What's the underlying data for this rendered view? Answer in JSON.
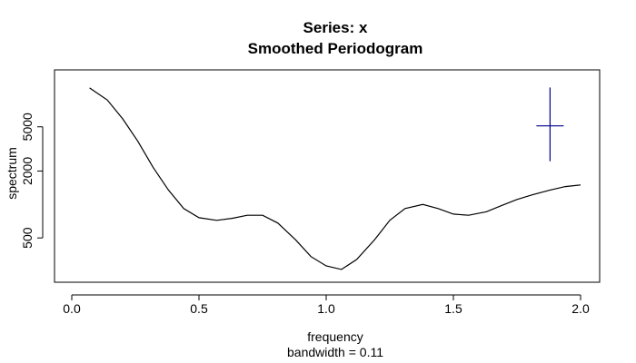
{
  "chart_data": {
    "type": "line",
    "title": "Series: x",
    "subtitle": "Smoothed Periodogram",
    "xlabel": "frequency",
    "xlabel_sub": "bandwidth = 0.11",
    "ylabel": "spectrum",
    "y_scale": "log",
    "xlim": [
      0,
      2
    ],
    "ylim": [
      280,
      14000
    ],
    "x_ticks": [
      0.0,
      0.5,
      1.0,
      1.5,
      2.0
    ],
    "x_tick_labels": [
      "0.0",
      "0.5",
      "1.0",
      "1.5",
      "2.0"
    ],
    "y_ticks": [
      500,
      2000,
      5000
    ],
    "y_tick_labels": [
      "500",
      "2000",
      "5000"
    ],
    "grid": false,
    "line_color": "#000000",
    "ci_color": "#00008b",
    "series": [
      {
        "x": [
          0.07,
          0.14,
          0.2,
          0.26,
          0.32,
          0.38,
          0.44,
          0.5,
          0.57,
          0.63,
          0.69,
          0.75,
          0.81,
          0.88,
          0.94,
          1.0,
          1.06,
          1.12,
          1.19,
          1.25,
          1.31,
          1.38,
          1.44,
          1.5,
          1.56,
          1.63,
          1.69,
          1.75,
          1.81,
          1.88,
          1.94,
          2.0
        ],
        "y": [
          11200,
          8700,
          5900,
          3700,
          2150,
          1350,
          920,
          760,
          720,
          750,
          800,
          800,
          680,
          480,
          340,
          280,
          260,
          320,
          480,
          720,
          920,
          1000,
          920,
          820,
          800,
          860,
          980,
          1110,
          1220,
          1350,
          1450,
          1500
        ]
      }
    ],
    "ci_bar": {
      "x": 1.88,
      "center": 5100,
      "lower": 2450,
      "upper": 11300
    }
  }
}
